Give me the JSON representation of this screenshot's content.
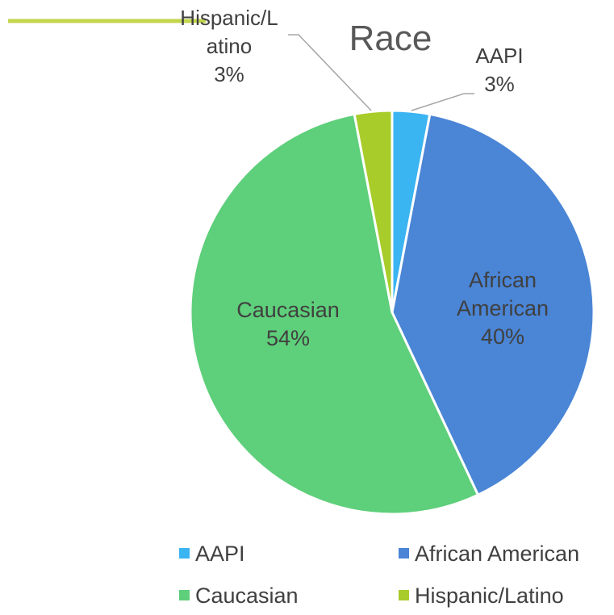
{
  "chart_data": {
    "type": "pie",
    "title": "Race",
    "categories": [
      "AAPI",
      "African American",
      "Caucasian",
      "Hispanic/Latino"
    ],
    "values": [
      3,
      40,
      54,
      3
    ],
    "value_unit": "%",
    "data_labels": [
      {
        "lines": [
          "AAPI",
          "3%"
        ]
      },
      {
        "lines": [
          "African",
          "American",
          "40%"
        ]
      },
      {
        "lines": [
          "Caucasian",
          "54%"
        ]
      },
      {
        "lines": [
          "Hispanic/L",
          "atino",
          "3%"
        ]
      }
    ],
    "colors": [
      "#3BB4F2",
      "#4A85D6",
      "#5ECF7A",
      "#A8CC2A"
    ],
    "legend_position": "bottom",
    "legend": [
      "AAPI",
      "African American",
      "Caucasian",
      "Hispanic/Latino"
    ],
    "accent_line_color": "#C3D64C"
  }
}
